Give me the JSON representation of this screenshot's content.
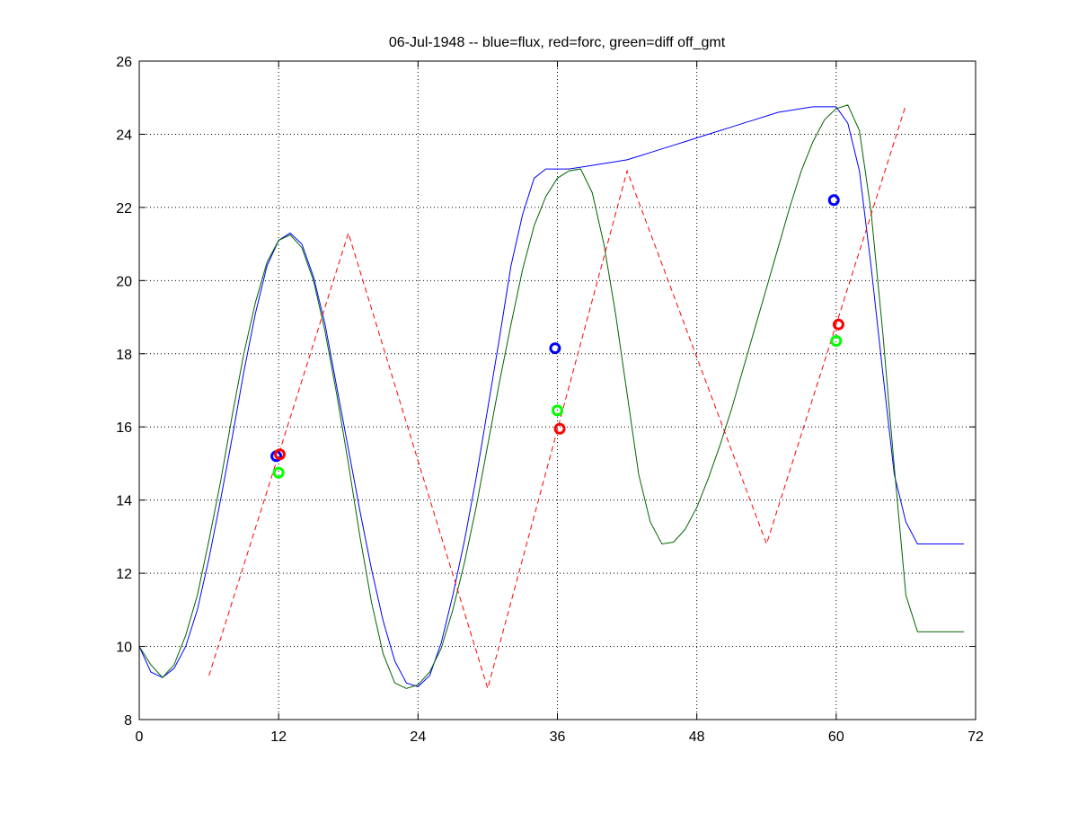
{
  "chart_data": {
    "type": "line",
    "title": "06-Jul-1948 -- blue=flux, red=forc, green=diff off_gmt",
    "xlabel": "",
    "ylabel": "",
    "xlim": [
      0,
      72
    ],
    "ylim": [
      8,
      26
    ],
    "xticks": [
      0,
      12,
      24,
      36,
      48,
      60,
      72
    ],
    "xtick_labels": [
      "0",
      "12",
      "24",
      "36",
      "48",
      "60",
      "72"
    ],
    "yticks": [
      8,
      10,
      12,
      14,
      16,
      18,
      20,
      22,
      24,
      26
    ],
    "ytick_labels": [
      "8",
      "10",
      "12",
      "14",
      "16",
      "18",
      "20",
      "22",
      "24",
      "26"
    ],
    "grid": true,
    "series": [
      {
        "color": "#0000ff",
        "style": "solid",
        "x": [
          0,
          1,
          2,
          3,
          4,
          5,
          6,
          7,
          8,
          9,
          10,
          11,
          12,
          13,
          14,
          15,
          16,
          17,
          18,
          19,
          20,
          21,
          22,
          23,
          24,
          25,
          26,
          27,
          28,
          29,
          30,
          31,
          32,
          33,
          34,
          35,
          36,
          37,
          38,
          39,
          40,
          41,
          42,
          43,
          44,
          45,
          46,
          47,
          48,
          49,
          50,
          51,
          52,
          53,
          54,
          55,
          56,
          57,
          58,
          59,
          60,
          61,
          62,
          63,
          64,
          65,
          66,
          67,
          68,
          69,
          70,
          71
        ],
        "y": [
          10.0,
          9.3,
          9.15,
          9.4,
          10.0,
          11.0,
          12.4,
          14.0,
          15.7,
          17.5,
          19.1,
          20.4,
          21.1,
          21.3,
          21.0,
          20.1,
          18.8,
          17.1,
          15.4,
          13.7,
          12.1,
          10.7,
          9.6,
          9.0,
          8.9,
          9.2,
          10.1,
          11.4,
          12.9,
          14.6,
          16.5,
          18.4,
          20.4,
          21.8,
          22.8,
          23.05,
          23.05,
          23.05,
          23.1,
          23.15,
          23.2,
          23.25,
          23.3,
          23.4,
          23.5,
          23.6,
          23.7,
          23.8,
          23.9,
          24.0,
          24.1,
          24.2,
          24.3,
          24.4,
          24.5,
          24.6,
          24.65,
          24.7,
          24.75,
          24.75,
          24.75,
          24.3,
          23.0,
          20.4,
          17.5,
          14.7,
          13.4,
          12.8,
          12.8,
          12.8,
          12.8,
          12.8
        ]
      },
      {
        "color": "#006400",
        "style": "solid",
        "x": [
          0,
          1,
          2,
          3,
          4,
          5,
          6,
          7,
          8,
          9,
          10,
          11,
          12,
          13,
          14,
          15,
          16,
          17,
          18,
          19,
          20,
          21,
          22,
          23,
          24,
          25,
          26,
          27,
          28,
          29,
          30,
          31,
          32,
          33,
          34,
          35,
          36,
          37,
          38,
          39,
          40,
          41,
          42,
          43,
          44,
          45,
          46,
          47,
          48,
          49,
          50,
          51,
          52,
          53,
          54,
          55,
          56,
          57,
          58,
          59,
          60,
          61,
          62,
          63,
          64,
          65,
          66,
          67,
          68,
          69,
          70,
          71
        ],
        "y": [
          10.0,
          9.5,
          9.15,
          9.5,
          10.3,
          11.4,
          12.9,
          14.5,
          16.3,
          18.0,
          19.4,
          20.5,
          21.1,
          21.25,
          20.9,
          20.0,
          18.6,
          16.9,
          15.0,
          13.0,
          11.2,
          9.8,
          9.0,
          8.85,
          8.95,
          9.3,
          9.95,
          11.0,
          12.3,
          13.8,
          15.5,
          17.2,
          18.8,
          20.3,
          21.5,
          22.3,
          22.8,
          23.0,
          23.05,
          22.4,
          21.0,
          19.1,
          16.9,
          14.7,
          13.4,
          12.8,
          12.85,
          13.2,
          13.8,
          14.6,
          15.5,
          16.5,
          17.6,
          18.7,
          19.8,
          20.9,
          22.0,
          23.0,
          23.8,
          24.4,
          24.7,
          24.8,
          24.1,
          21.9,
          18.6,
          14.9,
          11.4,
          10.4,
          10.4,
          10.4,
          10.4,
          10.4
        ]
      },
      {
        "color": "#ff0000",
        "style": "dashed",
        "x": [
          6,
          18,
          30,
          42,
          54,
          66
        ],
        "y": [
          9.2,
          21.3,
          8.85,
          23.0,
          12.8,
          24.8
        ]
      }
    ],
    "markers": [
      {
        "color": "#0000ff",
        "x": 11.8,
        "y": 15.2
      },
      {
        "color": "#ff0000",
        "x": 12.1,
        "y": 15.25
      },
      {
        "color": "#00ff00",
        "x": 12.0,
        "y": 14.75
      },
      {
        "color": "#0000ff",
        "x": 35.8,
        "y": 18.15
      },
      {
        "color": "#00ff00",
        "x": 36.0,
        "y": 16.45
      },
      {
        "color": "#ff0000",
        "x": 36.2,
        "y": 15.95
      },
      {
        "color": "#0000ff",
        "x": 59.8,
        "y": 22.2
      },
      {
        "color": "#ff0000",
        "x": 60.2,
        "y": 18.8
      },
      {
        "color": "#00ff00",
        "x": 60.0,
        "y": 18.35
      }
    ]
  }
}
